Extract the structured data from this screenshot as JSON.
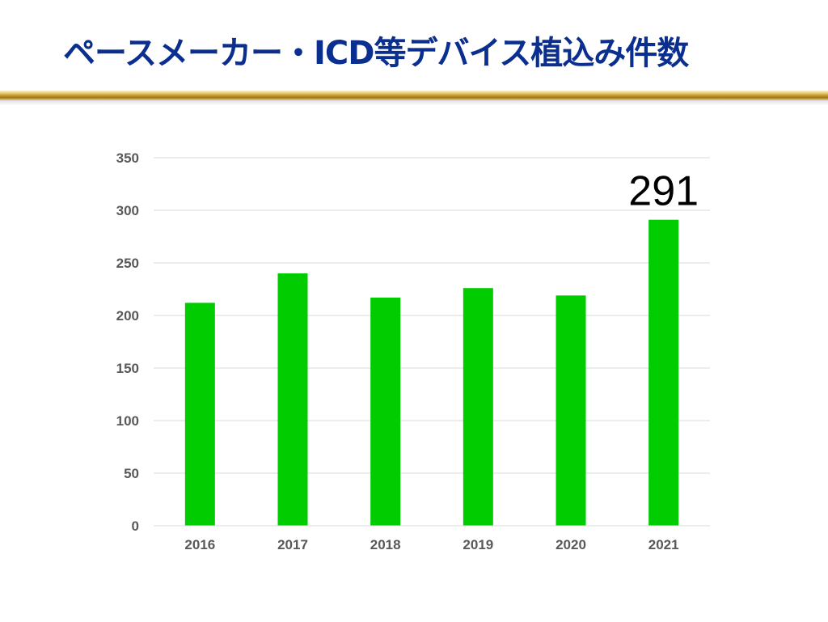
{
  "slide": {
    "title": "ペースメーカー・ICD等デバイス植込み件数"
  },
  "chart_data": {
    "type": "bar",
    "title": "",
    "xlabel": "",
    "ylabel": "",
    "categories": [
      "2016",
      "2017",
      "2018",
      "2019",
      "2020",
      "2021"
    ],
    "values": [
      212,
      240,
      217,
      226,
      219,
      291
    ],
    "ylim": [
      0,
      350
    ],
    "yticks": [
      0,
      50,
      100,
      150,
      200,
      250,
      300,
      350
    ],
    "grid": true,
    "legend": "none",
    "bar_color": "#00cc00",
    "data_labels": [
      {
        "category": "2021",
        "text": "291"
      }
    ]
  },
  "colors": {
    "title": "#0b2f8f",
    "bar": "#00cc00",
    "grid": "#d9d9d9",
    "tick_label": "#595959"
  }
}
